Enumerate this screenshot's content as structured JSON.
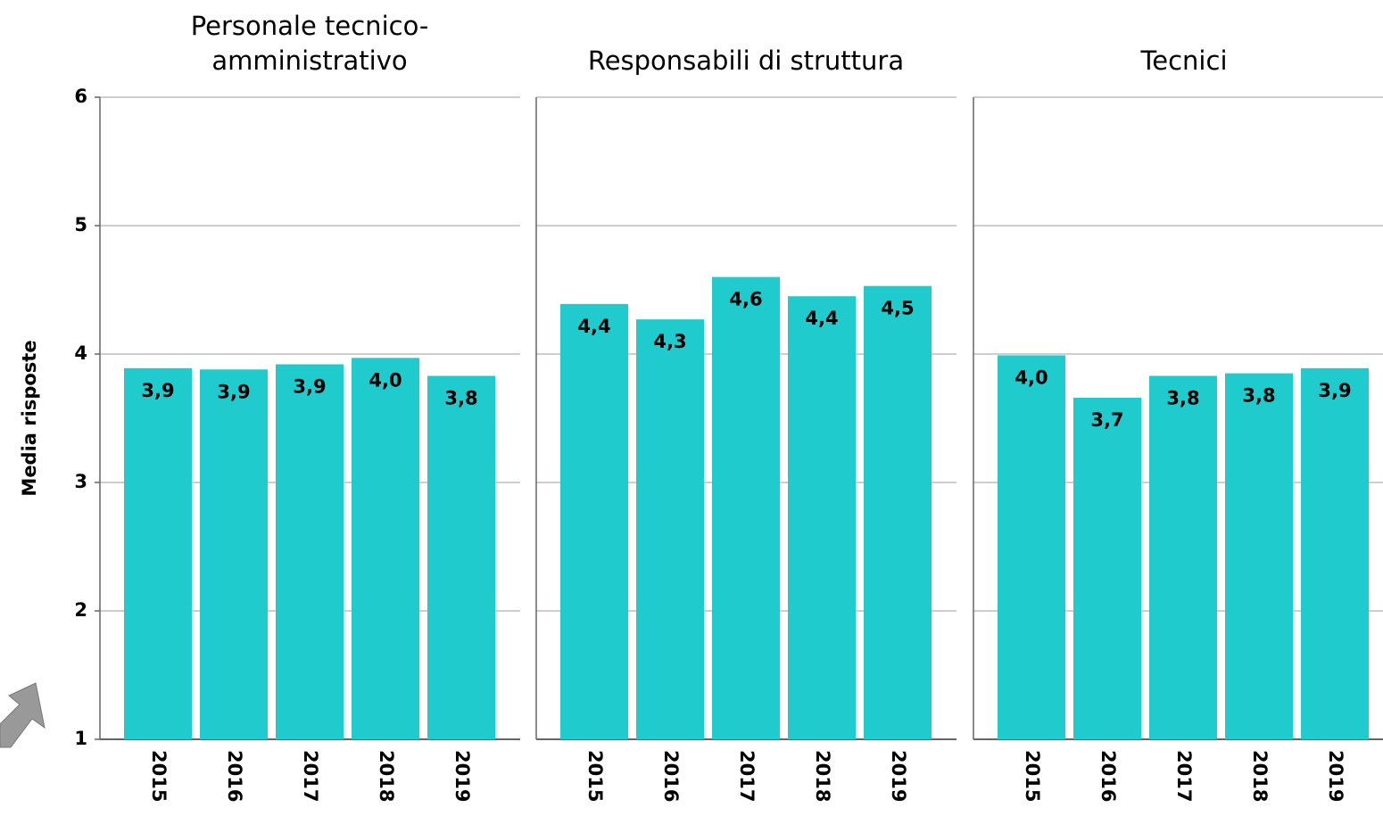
{
  "chart_data": [
    {
      "type": "bar",
      "title": [
        "Personale tecnico-",
        "amministrativo"
      ],
      "ylabel": "Media risposte",
      "categories": [
        "2015",
        "2016",
        "2017",
        "2018",
        "2019"
      ],
      "values": [
        3.89,
        3.88,
        3.92,
        3.97,
        3.83
      ],
      "value_labels": [
        "3,9",
        "3,9",
        "3,9",
        "4,0",
        "3,8"
      ],
      "color": "#1fcbcc",
      "ylim": [
        1,
        6
      ],
      "yticks": [
        1,
        2,
        3,
        4,
        5,
        6
      ],
      "grid": true
    },
    {
      "type": "bar",
      "title": [
        "Responsabili di struttura"
      ],
      "categories": [
        "2015",
        "2016",
        "2017",
        "2018",
        "2019"
      ],
      "values": [
        4.39,
        4.27,
        4.6,
        4.45,
        4.53
      ],
      "value_labels": [
        "4,4",
        "4,3",
        "4,6",
        "4,4",
        "4,5"
      ],
      "color": "#1fcbcc",
      "ylim": [
        1,
        6
      ],
      "yticks": [
        1,
        2,
        3,
        4,
        5,
        6
      ],
      "grid": true
    },
    {
      "type": "bar",
      "title": [
        "Tecnici"
      ],
      "categories": [
        "2015",
        "2016",
        "2017",
        "2018",
        "2019"
      ],
      "values": [
        3.99,
        3.66,
        3.83,
        3.85,
        3.89
      ],
      "value_labels": [
        "4,0",
        "3,7",
        "3,8",
        "3,8",
        "3,9"
      ],
      "color": "#1fcbcc",
      "ylim": [
        1,
        6
      ],
      "yticks": [
        1,
        2,
        3,
        4,
        5,
        6
      ],
      "grid": true
    }
  ]
}
